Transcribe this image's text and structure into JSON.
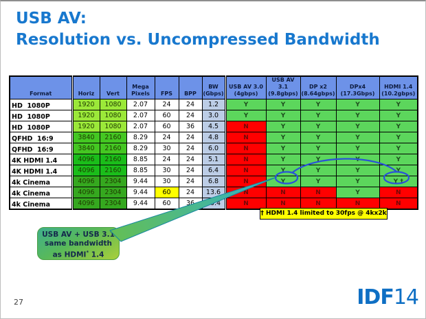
{
  "slide": {
    "title_line1": "USB AV:",
    "title_line2": "Resolution vs. Uncompressed Bandwidth",
    "page_number": "27",
    "logo_bold": "IDF",
    "logo_light": "14"
  },
  "colors": {
    "title_blue": "#1878CE",
    "logo_blue": "#0E6FC4",
    "header_bg": "#6D92E8",
    "res_1080": "#9BE839",
    "res_2160": "#44C722",
    "res_4k2160": "#1ABD1A",
    "res_2304": "#35A81F",
    "bw_bg": "#BCCDE6",
    "yes_bg": "#5CD65C",
    "no_bg": "#FF0000",
    "yes_text": "#1E4D1E",
    "no_text": "#700808",
    "highlight_yellow": "#FFFF00",
    "ellipse_blue": "#2A52D8",
    "arrow_green": "#62BE58",
    "arrow_teal": "#32B1C8"
  },
  "table": {
    "headers": [
      {
        "line1": "Format",
        "line2": ""
      },
      {
        "line1": "Horiz",
        "line2": ""
      },
      {
        "line1": "Vert",
        "line2": ""
      },
      {
        "line1": "Mega",
        "line2": "Pixels"
      },
      {
        "line1": "FPS",
        "line2": ""
      },
      {
        "line1": "BPP",
        "line2": ""
      },
      {
        "line1": "BW",
        "line2": "(Gbps)"
      },
      {
        "line1": "USB AV 3.0",
        "line2": "(4gbps)"
      },
      {
        "line1": "USB AV 3.1",
        "line2": "(9.8gbps)"
      },
      {
        "line1": "DP x2",
        "line2": "(8.64gbps)"
      },
      {
        "line1": "DPx4",
        "line2": "(17.3Gbps)"
      },
      {
        "line1": "HDMI 1.4",
        "line2": "(10.2gbps)"
      }
    ],
    "rows": [
      {
        "format": "HD  1080P",
        "horiz": "1920",
        "vert": "1080",
        "megapixels": "2.07",
        "fps": "24",
        "bpp": "24",
        "bw": "1.2",
        "res_color": "res_1080",
        "fps_highlight": false,
        "support": [
          "Y",
          "Y",
          "Y",
          "Y",
          "Y"
        ]
      },
      {
        "format": "HD  1080P",
        "horiz": "1920",
        "vert": "1080",
        "megapixels": "2.07",
        "fps": "60",
        "bpp": "24",
        "bw": "3.0",
        "res_color": "res_1080",
        "fps_highlight": false,
        "support": [
          "Y",
          "Y",
          "Y",
          "Y",
          "Y"
        ]
      },
      {
        "format": "HD  1080P",
        "horiz": "1920",
        "vert": "1080",
        "megapixels": "2.07",
        "fps": "60",
        "bpp": "36",
        "bw": "4.5",
        "res_color": "res_1080",
        "fps_highlight": false,
        "support": [
          "N",
          "Y",
          "Y",
          "Y",
          "Y"
        ]
      },
      {
        "format": "QFHD  16:9",
        "horiz": "3840",
        "vert": "2160",
        "megapixels": "8.29",
        "fps": "24",
        "bpp": "24",
        "bw": "4.8",
        "res_color": "res_2160",
        "fps_highlight": false,
        "support": [
          "N",
          "Y",
          "Y",
          "Y",
          "Y"
        ]
      },
      {
        "format": "QFHD  16:9",
        "horiz": "3840",
        "vert": "2160",
        "megapixels": "8.29",
        "fps": "30",
        "bpp": "24",
        "bw": "6.0",
        "res_color": "res_2160",
        "fps_highlight": false,
        "support": [
          "N",
          "Y",
          "Y",
          "Y",
          "Y"
        ]
      },
      {
        "format": "4K HDMI 1.4",
        "horiz": "4096",
        "vert": "2160",
        "megapixels": "8.85",
        "fps": "24",
        "bpp": "24",
        "bw": "5.1",
        "res_color": "res_4k2160",
        "fps_highlight": false,
        "support": [
          "N",
          "Y",
          "Y",
          "Y",
          "Y"
        ]
      },
      {
        "format": "4K HDMI 1.4",
        "horiz": "4096",
        "vert": "2160",
        "megapixels": "8.85",
        "fps": "30",
        "bpp": "24",
        "bw": "6.4",
        "res_color": "res_4k2160",
        "fps_highlight": false,
        "support": [
          "N",
          "Y",
          "Y",
          "Y",
          "Y"
        ]
      },
      {
        "format": "4k Cinema",
        "horiz": "4096",
        "vert": "2304",
        "megapixels": "9.44",
        "fps": "30",
        "bpp": "24",
        "bw": "6.8",
        "res_color": "res_2304",
        "fps_highlight": false,
        "support": [
          "N",
          "Y",
          "Y",
          "Y",
          "Y †"
        ]
      },
      {
        "format": "4k Cinema",
        "horiz": "4096",
        "vert": "2304",
        "megapixels": "9.44",
        "fps": "60",
        "bpp": "24",
        "bw": "13.6",
        "res_color": "res_2304",
        "fps_highlight": true,
        "support": [
          "N",
          "N",
          "N",
          "Y",
          "N"
        ]
      },
      {
        "format": "4k Cinema",
        "horiz": "4096",
        "vert": "2304",
        "megapixels": "9.44",
        "fps": "60",
        "bpp": "36",
        "bw": "20.4",
        "res_color": "res_2304",
        "fps_highlight": false,
        "support": [
          "N",
          "N",
          "N",
          "N",
          "N"
        ]
      }
    ]
  },
  "footnote": {
    "text": "† HDMI 1.4 limited to 30fps @ 4kx2k"
  },
  "callout": {
    "line1": "USB AV + USB 3.1",
    "line2": "same bandwidth",
    "line3_pre": "as HDMI",
    "line3_sup": "*",
    "line3_post": " 1.4"
  }
}
